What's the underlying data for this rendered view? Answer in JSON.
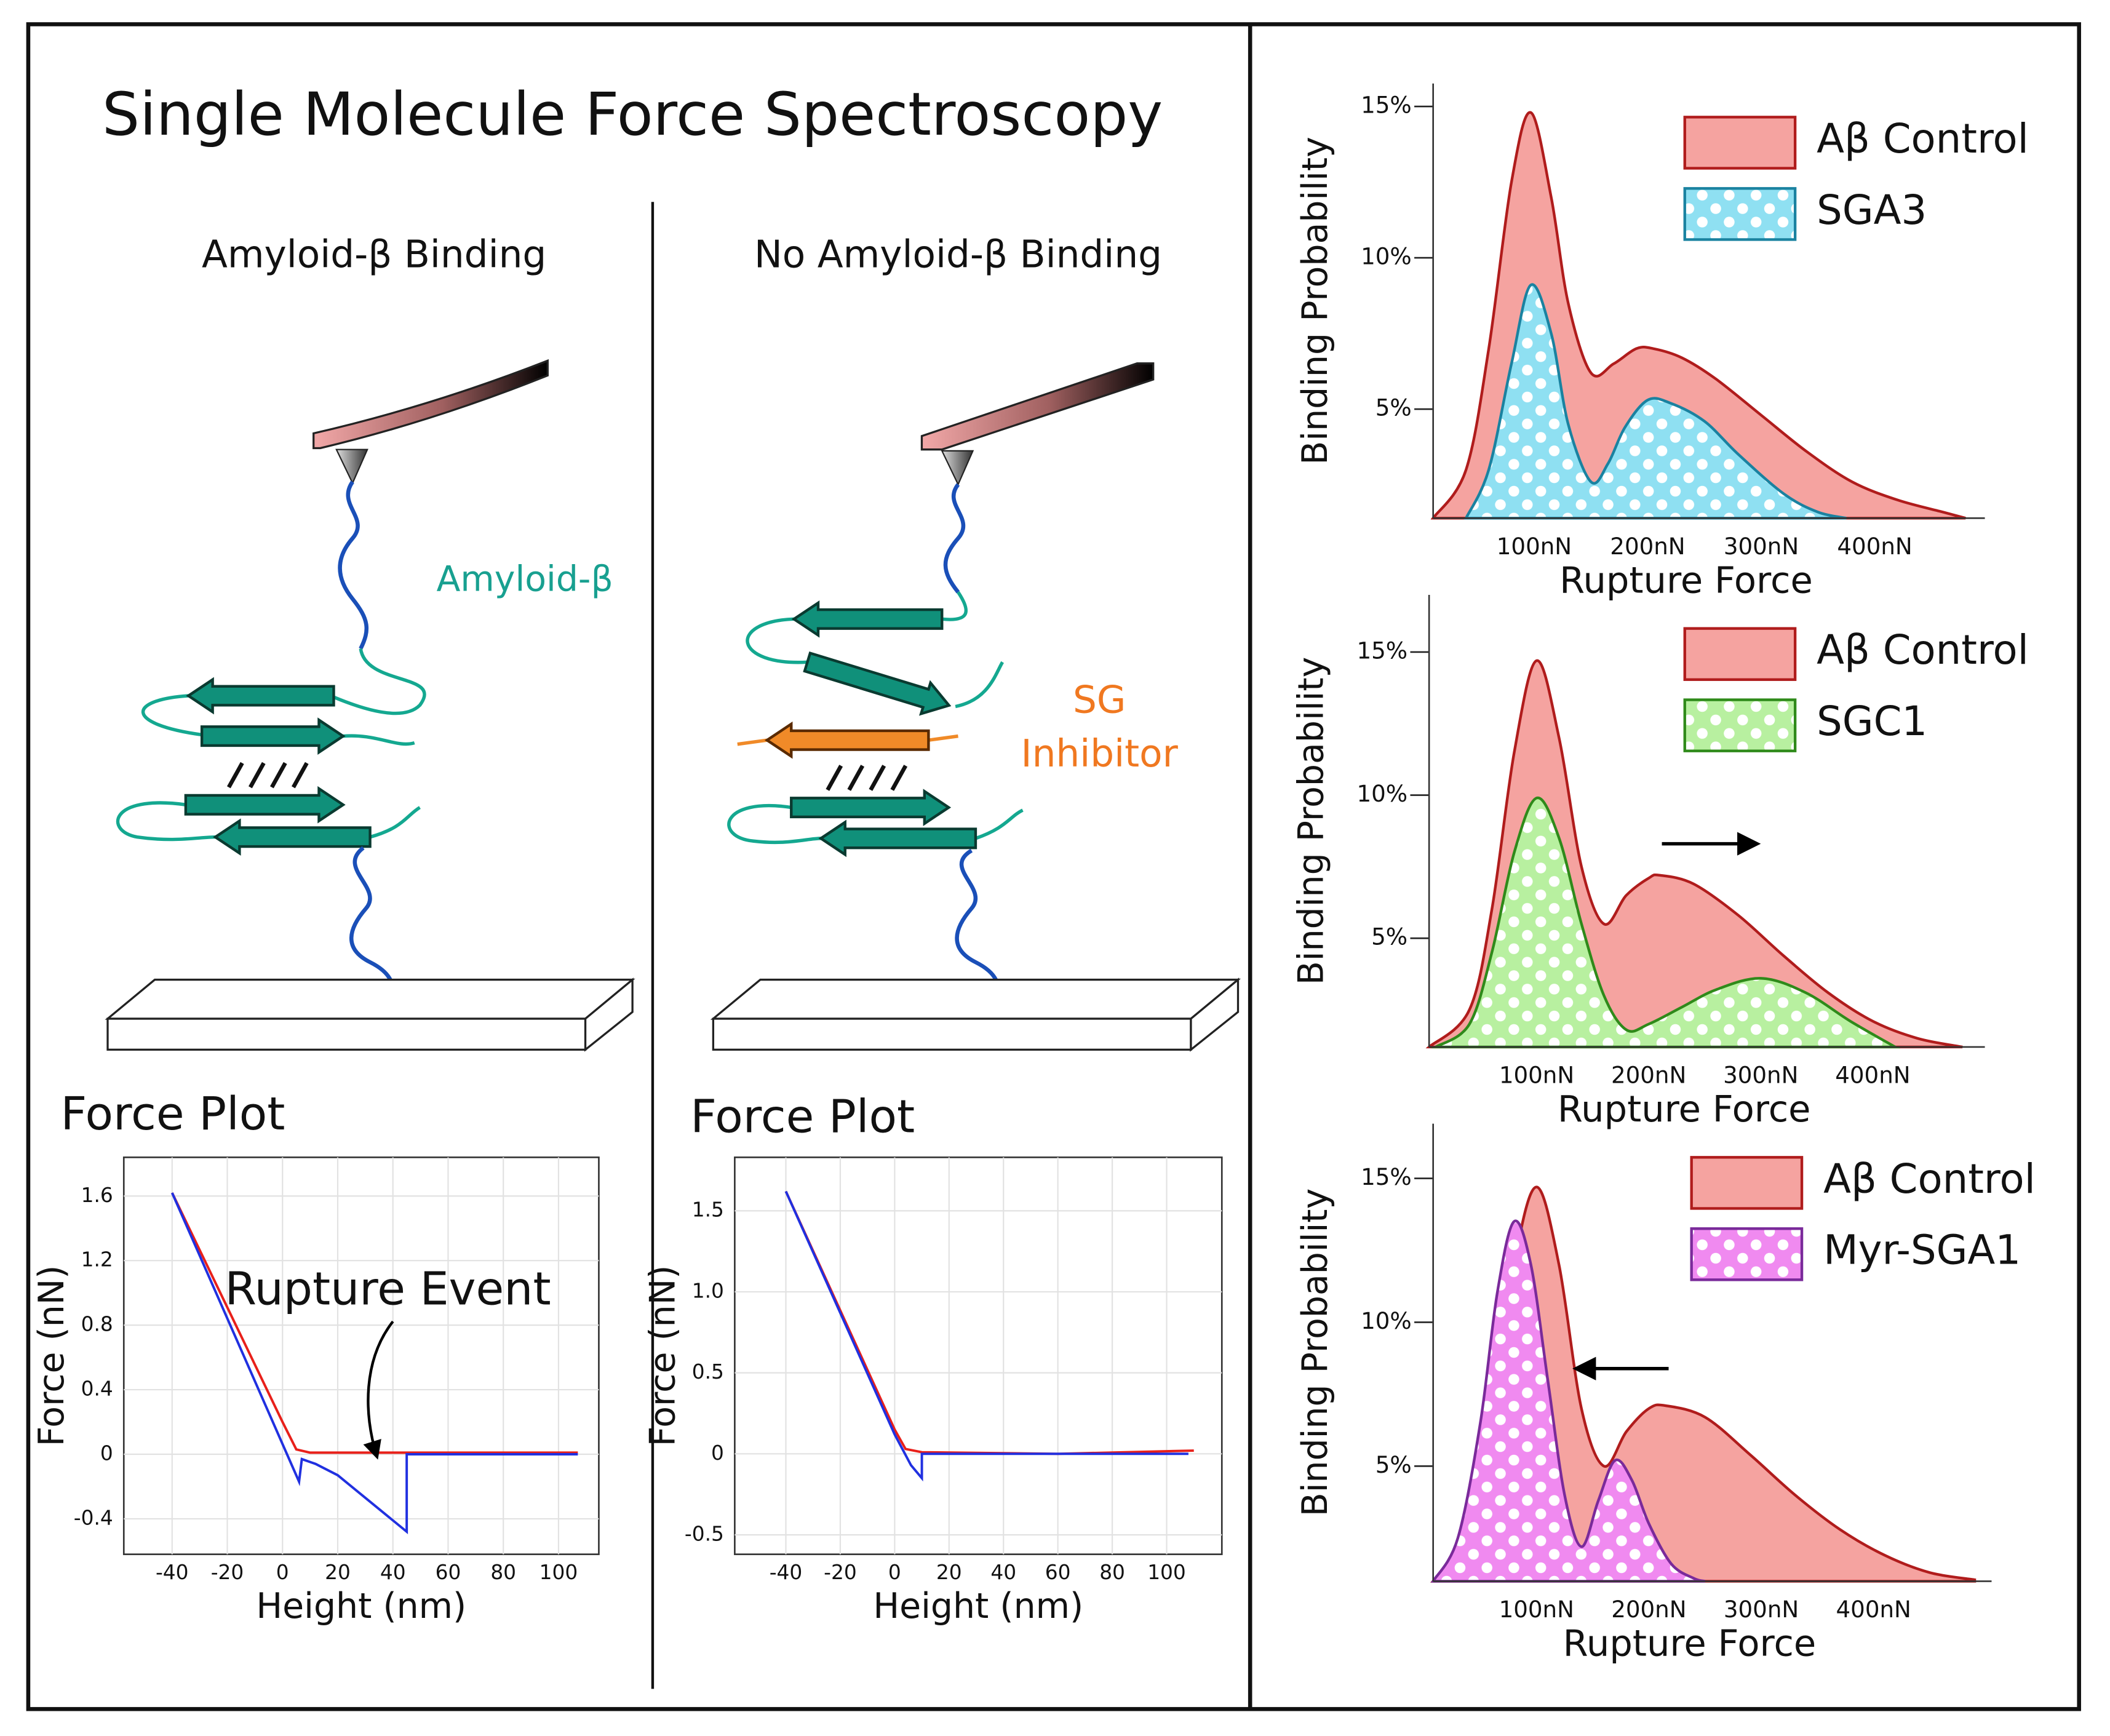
{
  "title": "Single Molecule Force Spectroscopy",
  "panels": [
    {
      "heading": "Amyloid-β Binding",
      "molecule_label": "Amyloid-β",
      "plot_title": "Force Plot",
      "chart": {
        "type": "line",
        "xlabel": "Height (nm)",
        "ylabel": "Force (nN)",
        "annotation": "Rupture Event",
        "grid": true,
        "xlim": [
          -57.5,
          114.6
        ],
        "ylim": [
          -0.62,
          1.84
        ],
        "xticks": [
          -40,
          -20,
          0,
          20,
          40,
          60,
          80,
          100
        ],
        "yticks": [
          1.6,
          1.2,
          0.8,
          0.4,
          0,
          -0.4
        ],
        "series": [
          {
            "color": "#e8201a",
            "x": [
              -40,
              -20,
              0,
              5,
              10,
              40,
              80,
              107
            ],
            "values": [
              1.62,
              0.91,
              0.2,
              0.03,
              0.01,
              0.01,
              0.01,
              0.01
            ]
          },
          {
            "color": "#2030e0",
            "x": [
              -40,
              6,
              7,
              12,
              20,
              30,
              45,
              45,
              60,
              107
            ],
            "values": [
              1.62,
              -0.17,
              -0.03,
              -0.06,
              -0.13,
              -0.27,
              -0.48,
              0,
              0,
              0
            ]
          }
        ]
      }
    },
    {
      "heading": "No Amyloid-β Binding",
      "inhibitor_label": [
        "SG",
        "Inhibitor"
      ],
      "plot_title": "Force Plot",
      "chart": {
        "type": "line",
        "xlabel": "Height (nm)",
        "ylabel": "Force (nN)",
        "grid": true,
        "xlim": [
          -58.8,
          120.3
        ],
        "ylim": [
          -0.62,
          1.83
        ],
        "xticks": [
          -40,
          -20,
          0,
          20,
          40,
          60,
          80,
          100
        ],
        "yticks": [
          1.5,
          {
            "value": 1,
            "label": "1.0"
          },
          0.5,
          0,
          -0.5
        ],
        "series": [
          {
            "color": "#e8201a",
            "x": [
              -40,
              0,
              4,
              10,
              60,
              110
            ],
            "values": [
              1.62,
              0.15,
              0.03,
              0.01,
              0,
              0.02
            ]
          },
          {
            "color": "#2030e0",
            "x": [
              -40,
              0,
              6,
              10,
              10,
              60,
              108
            ],
            "values": [
              1.62,
              0.12,
              -0.07,
              -0.15,
              0,
              0,
              0
            ]
          }
        ]
      }
    }
  ],
  "distributions": [
    {
      "type": "area",
      "xlabel": "Rupture Force",
      "ylabel": "Binding Probability",
      "legend": "upper right",
      "xlim": [
        11,
        497
      ],
      "ylim": [
        1.4,
        15.76
      ],
      "xticks": [
        {
          "value": 100,
          "label": "100nN"
        },
        {
          "value": 200,
          "label": "200nN"
        },
        {
          "value": 300,
          "label": "300nN"
        },
        {
          "value": 400,
          "label": "400nN"
        }
      ],
      "yticks": [
        {
          "value": 5,
          "label": "5%"
        },
        {
          "value": 10,
          "label": "10%"
        },
        {
          "value": 15,
          "label": "15%"
        }
      ],
      "series": [
        {
          "name": "Aβ Control",
          "color": "#f5a3a0",
          "edge_color": "#b01c1c",
          "pattern": "none",
          "x": [
            11,
            40,
            60,
            80,
            97,
            115,
            130,
            150,
            170,
            190,
            205,
            230,
            260,
            300,
            340,
            380,
            420,
            460,
            480
          ],
          "values": [
            1.4,
            3,
            7,
            12.5,
            14.8,
            12,
            8.5,
            6.2,
            6.5,
            7,
            7,
            6.7,
            6,
            4.8,
            3.6,
            2.6,
            2,
            1.6,
            1.4
          ]
        },
        {
          "name": "SGA3",
          "color": "#8fe0f2",
          "edge_color": "#1a82a0",
          "pattern": "dots",
          "x": [
            40,
            60,
            80,
            97,
            115,
            130,
            150,
            165,
            180,
            200,
            220,
            250,
            280,
            320,
            350,
            375
          ],
          "values": [
            1.4,
            3,
            6.5,
            9.1,
            7.5,
            4.5,
            2.6,
            3.2,
            4.4,
            5.3,
            5.2,
            4.6,
            3.5,
            2.2,
            1.6,
            1.4
          ]
        }
      ]
    },
    {
      "type": "area",
      "xlabel": "Rupture Force",
      "ylabel": "Binding Probability",
      "legend": "upper right",
      "xlim": [
        4,
        500
      ],
      "ylim": [
        1.2,
        17
      ],
      "xticks": [
        {
          "value": 100,
          "label": "100nN"
        },
        {
          "value": 200,
          "label": "200nN"
        },
        {
          "value": 300,
          "label": "300nN"
        },
        {
          "value": 400,
          "label": "400nN"
        }
      ],
      "yticks": [
        {
          "value": 5,
          "label": "5%"
        },
        {
          "value": 10,
          "label": "10%"
        },
        {
          "value": 15,
          "label": "15%"
        }
      ],
      "series": [
        {
          "name": "Aβ Control",
          "color": "#f5a3a0",
          "edge_color": "#b01c1c",
          "pattern": "none",
          "x": [
            4,
            40,
            60,
            80,
            100,
            120,
            140,
            160,
            180,
            200,
            210,
            240,
            280,
            320,
            360,
            400,
            440,
            480
          ],
          "values": [
            1.2,
            2.5,
            6,
            11.5,
            14.7,
            12,
            7.5,
            5.5,
            6.5,
            7.1,
            7.2,
            6.9,
            5.8,
            4.4,
            3.1,
            2.1,
            1.5,
            1.2
          ]
        },
        {
          "name": "SGC1",
          "color": "#b8f0a0",
          "edge_color": "#2f8a1a",
          "pattern": "dots",
          "x": [
            10,
            40,
            60,
            80,
            100,
            120,
            140,
            160,
            180,
            200,
            230,
            260,
            300,
            340,
            380,
            420
          ],
          "values": [
            1.2,
            2,
            4.5,
            8,
            9.9,
            8.5,
            5.5,
            3,
            1.8,
            2,
            2.6,
            3.2,
            3.6,
            3.1,
            2.1,
            1.2
          ]
        }
      ]
    },
    {
      "type": "area",
      "xlabel": "Rupture Force",
      "ylabel": "Binding Probability",
      "legend": "upper right",
      "xlim": [
        8,
        505
      ],
      "ylim": [
        1,
        16.9
      ],
      "xticks": [
        {
          "value": 100,
          "label": "100nN"
        },
        {
          "value": 200,
          "label": "200nN"
        },
        {
          "value": 300,
          "label": "300nN"
        },
        {
          "value": 400,
          "label": "400nN"
        }
      ],
      "yticks": [
        {
          "value": 5,
          "label": "5%"
        },
        {
          "value": 10,
          "label": "10%"
        },
        {
          "value": 15,
          "label": "15%"
        }
      ],
      "series": [
        {
          "name": "Aβ Control",
          "color": "#f5a3a0",
          "edge_color": "#b01c1c",
          "pattern": "none",
          "x": [
            8,
            40,
            60,
            80,
            100,
            120,
            140,
            160,
            180,
            200,
            215,
            250,
            290,
            330,
            370,
            410,
            450,
            490
          ],
          "values": [
            1,
            2.5,
            6.5,
            12,
            14.7,
            12,
            7,
            5,
            6.2,
            7,
            7.1,
            6.7,
            5.4,
            4,
            2.8,
            1.9,
            1.3,
            1.05
          ]
        },
        {
          "name": "Myr-SGA1",
          "color": "#f08af0",
          "edge_color": "#7a2a9a",
          "pattern": "dots",
          "x": [
            8,
            30,
            50,
            65,
            80,
            95,
            110,
            125,
            140,
            155,
            170,
            185,
            200,
            220,
            240,
            250
          ],
          "values": [
            1,
            2.5,
            6.5,
            11,
            13.5,
            12,
            8,
            4,
            2.2,
            3.8,
            5.2,
            4.5,
            3,
            1.6,
            1.1,
            1
          ]
        }
      ]
    }
  ]
}
